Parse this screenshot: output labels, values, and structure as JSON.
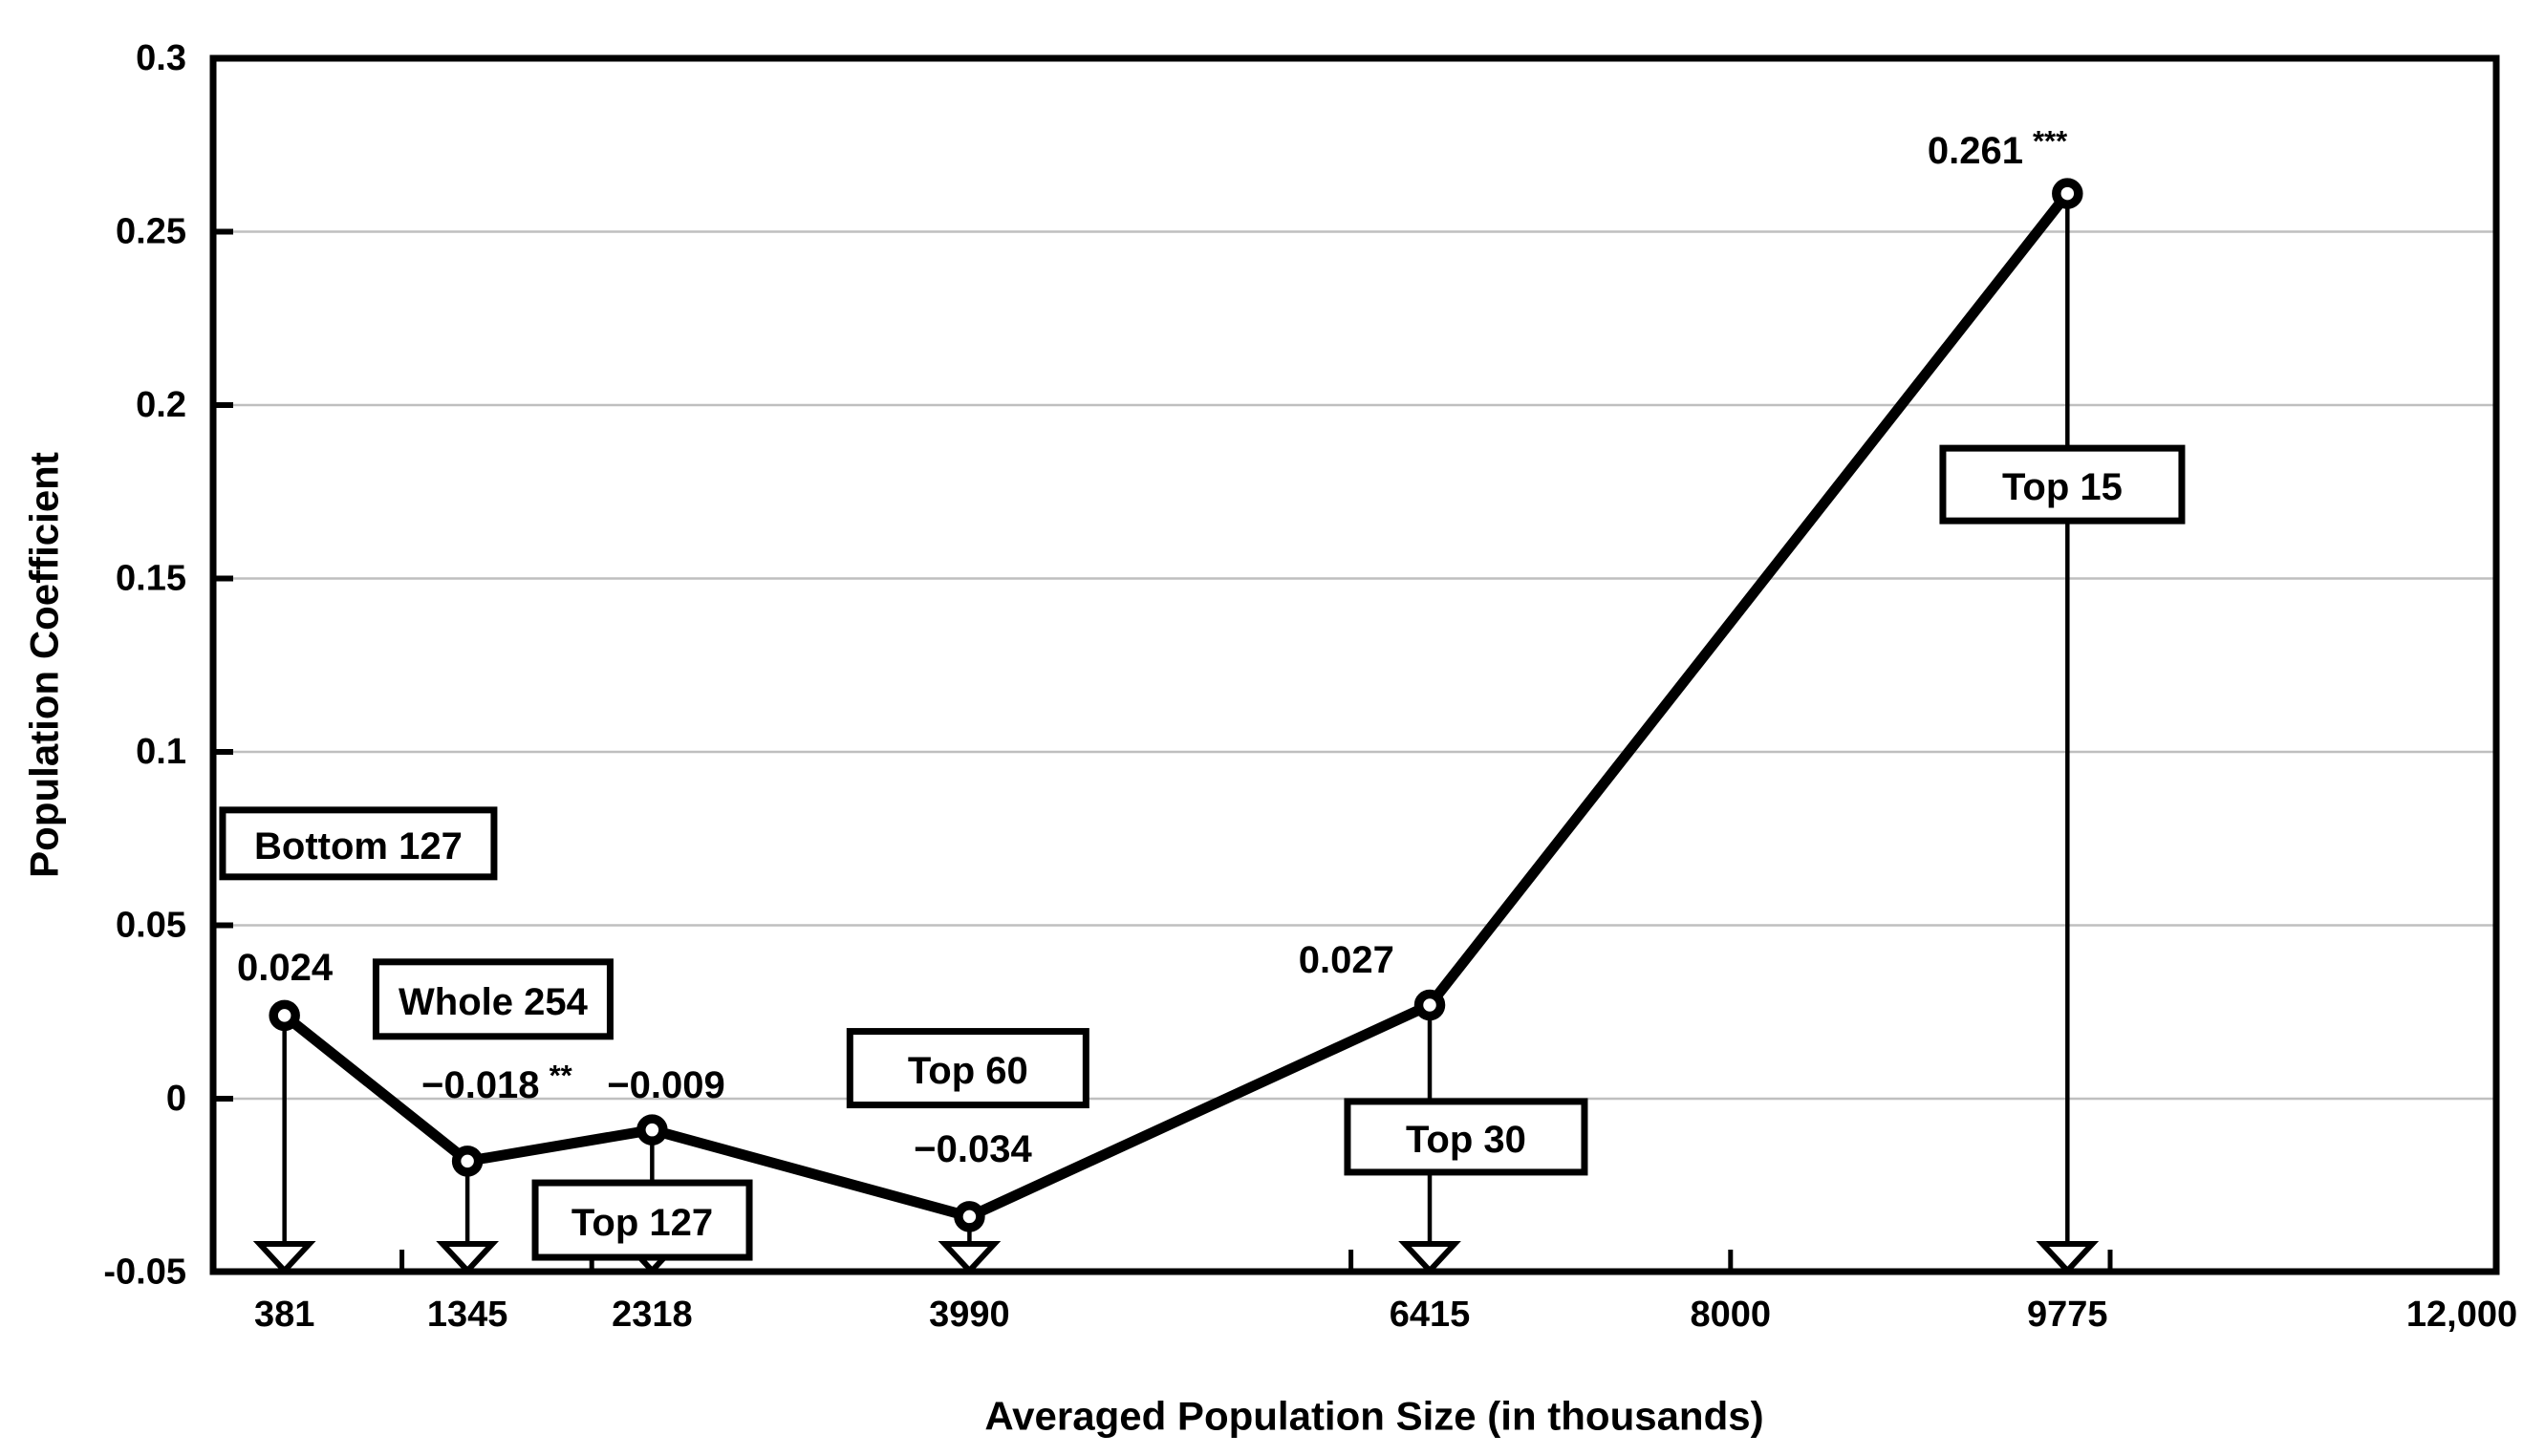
{
  "chart_data": {
    "type": "line",
    "title": "",
    "xlabel": "Averaged Population Size (in thousands)",
    "ylabel": "Population Coefficient",
    "xlim": [
      0,
      12050
    ],
    "ylim": [
      -0.05,
      0.3
    ],
    "grid": "horizontal",
    "legend": "none",
    "line_style": "solid black line with open circle markers and downward open-triangle drop arrows to the x-axis",
    "series": [
      {
        "name": "",
        "points": [
          {
            "x": 381,
            "y": 0.024,
            "value_label": "0.024",
            "sig": "",
            "group": "Bottom 127",
            "label_at": {
              "x": 383,
              "y": 0.0377
            },
            "box_at": {
              "x": 770,
              "y": 0.0736
            }
          },
          {
            "x": 1345,
            "y": -0.018,
            "value_label": "−0.018",
            "sig": "**",
            "group": "Whole 254",
            "label_at": {
              "x": 1500,
              "y": 0.0039
            },
            "box_at": {
              "x": 1480,
              "y": 0.0287
            }
          },
          {
            "x": 2318,
            "y": -0.009,
            "value_label": "−0.009",
            "sig": "",
            "group": "Top 127",
            "label_at": {
              "x": 2392,
              "y": 0.0039
            },
            "box_at": {
              "x": 2266,
              "y": -0.035
            }
          },
          {
            "x": 3990,
            "y": -0.034,
            "value_label": "−0.034",
            "sig": "",
            "group": "Top 60",
            "label_at": {
              "x": 4008,
              "y": -0.0146
            },
            "box_at": {
              "x": 3982,
              "y": 0.0088
            }
          },
          {
            "x": 6415,
            "y": 0.027,
            "value_label": "0.027",
            "sig": "",
            "group": "Top 30",
            "label_at": {
              "x": 5976,
              "y": 0.0399
            },
            "box_at": {
              "x": 6606,
              "y": -0.011
            }
          },
          {
            "x": 9775,
            "y": 0.261,
            "value_label": "0.261",
            "sig": "***",
            "group": "Top 15",
            "label_at": {
              "x": 9406,
              "y": 0.2733
            },
            "box_at": {
              "x": 9748,
              "y": 0.1771
            }
          }
        ]
      }
    ],
    "x_ticks": [
      {
        "value": 381,
        "label": "381"
      },
      {
        "value": 1345,
        "label": "1345"
      },
      {
        "value": 2318,
        "label": "2318"
      },
      {
        "value": 3990,
        "label": "3990"
      },
      {
        "value": 6415,
        "label": "6415"
      },
      {
        "value": 8000,
        "label": "8000"
      },
      {
        "value": 9775,
        "label": "9775"
      },
      {
        "value": 12000,
        "label": "12,000"
      }
    ],
    "x_minor_tick_values": [
      1000,
      2000,
      6000,
      8000,
      10000
    ],
    "y_ticks": [
      {
        "value": 0.3,
        "label": "0.3",
        "gridline": false
      },
      {
        "value": 0.25,
        "label": "0.25",
        "gridline": true
      },
      {
        "value": 0.2,
        "label": "0.2",
        "gridline": true
      },
      {
        "value": 0.15,
        "label": "0.15",
        "gridline": true
      },
      {
        "value": 0.1,
        "label": "0.1",
        "gridline": true
      },
      {
        "value": 0.05,
        "label": "0.05",
        "gridline": true
      },
      {
        "value": 0,
        "label": "0",
        "gridline": true
      },
      {
        "value": -0.05,
        "label": "-0.05",
        "gridline": false
      }
    ],
    "colors": {
      "line": "#000000",
      "marker_fill": "#ffffff",
      "grid": "#bfbfbf",
      "text": "#000000",
      "background": "#ffffff",
      "box_fill": "#ffffff",
      "box_border": "#000000"
    }
  }
}
